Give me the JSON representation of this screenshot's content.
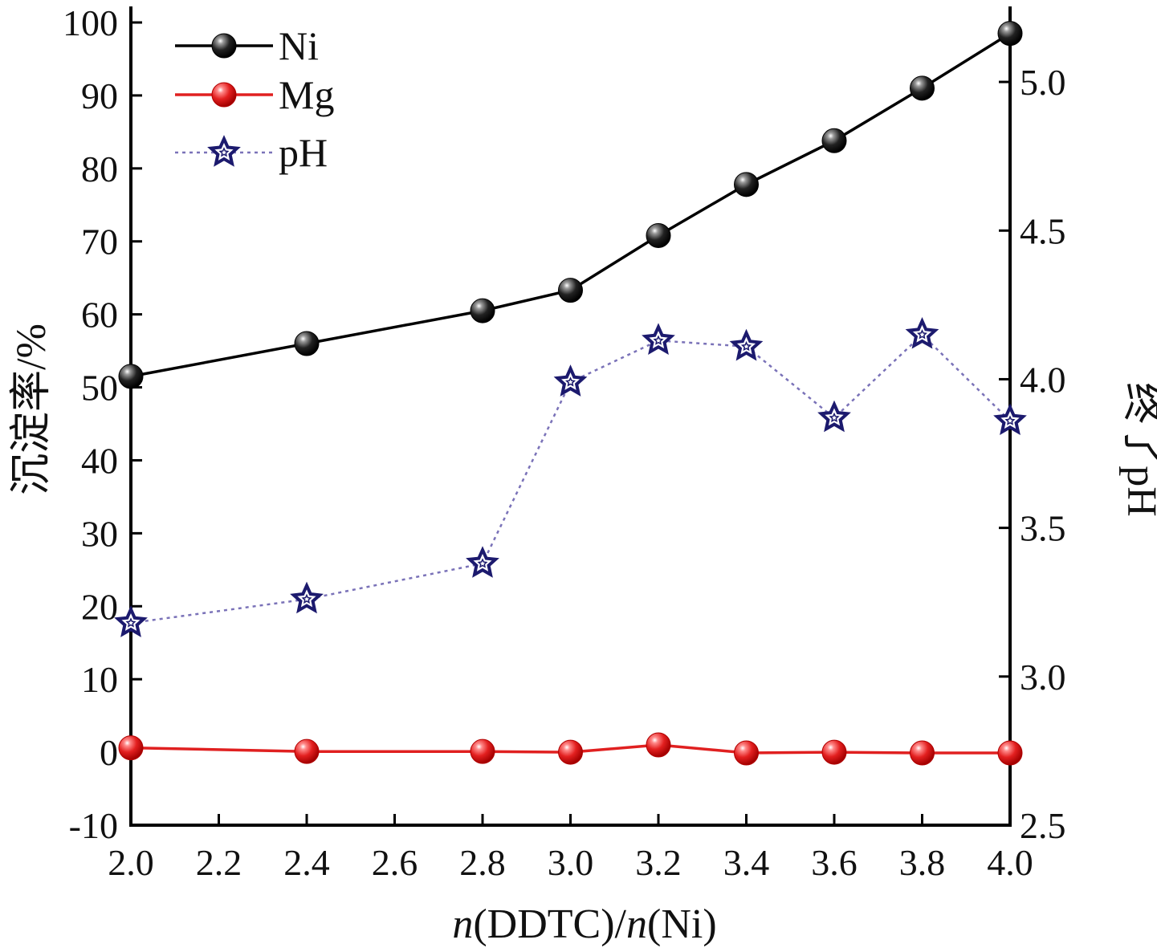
{
  "chart_data": {
    "type": "line",
    "x": [
      2.0,
      2.4,
      2.8,
      3.0,
      3.2,
      3.4,
      3.6,
      3.8,
      4.0
    ],
    "xlim": [
      2.0,
      4.0
    ],
    "x_ticks": [
      "2.0",
      "2.2",
      "2.4",
      "2.6",
      "2.8",
      "3.0",
      "3.2",
      "3.4",
      "3.6",
      "3.8",
      "4.0"
    ],
    "xlabel": {
      "italic_1": "n",
      "text_1": "(DDTC)/",
      "italic_2": "n",
      "text_2": "(Ni)"
    },
    "ylabel_left": "沉淀率/%",
    "ylim_left": [
      -10,
      100
    ],
    "y_ticks_left": [
      "-10",
      "0",
      "10",
      "20",
      "30",
      "40",
      "50",
      "60",
      "70",
      "80",
      "90",
      "100"
    ],
    "ylabel_right": "终了pH",
    "ylim_right": [
      2.5,
      5.2
    ],
    "y_ticks_right": [
      "2.5",
      "3.0",
      "3.5",
      "4.0",
      "4.5",
      "5.0"
    ],
    "grid": false,
    "legend_position": "top-left",
    "series": [
      {
        "name": "Ni",
        "axis": "left",
        "color": "#000000",
        "line": "solid",
        "marker": "sphere-black",
        "values": [
          51.5,
          56.0,
          60.5,
          63.3,
          70.8,
          77.8,
          83.8,
          91.0,
          98.5
        ]
      },
      {
        "name": "Mg",
        "axis": "left",
        "color": "#e02020",
        "line": "solid",
        "marker": "sphere-red",
        "values": [
          0.6,
          0.1,
          0.1,
          0.0,
          1.0,
          -0.1,
          0.0,
          -0.1,
          -0.1
        ]
      },
      {
        "name": "pH",
        "axis": "right",
        "color": "#7a72b8",
        "marker_color": "#1c1a6e",
        "line": "dotted",
        "marker": "star",
        "values": [
          3.18,
          3.26,
          3.38,
          3.99,
          4.13,
          4.11,
          3.87,
          4.15,
          3.86
        ]
      }
    ]
  }
}
